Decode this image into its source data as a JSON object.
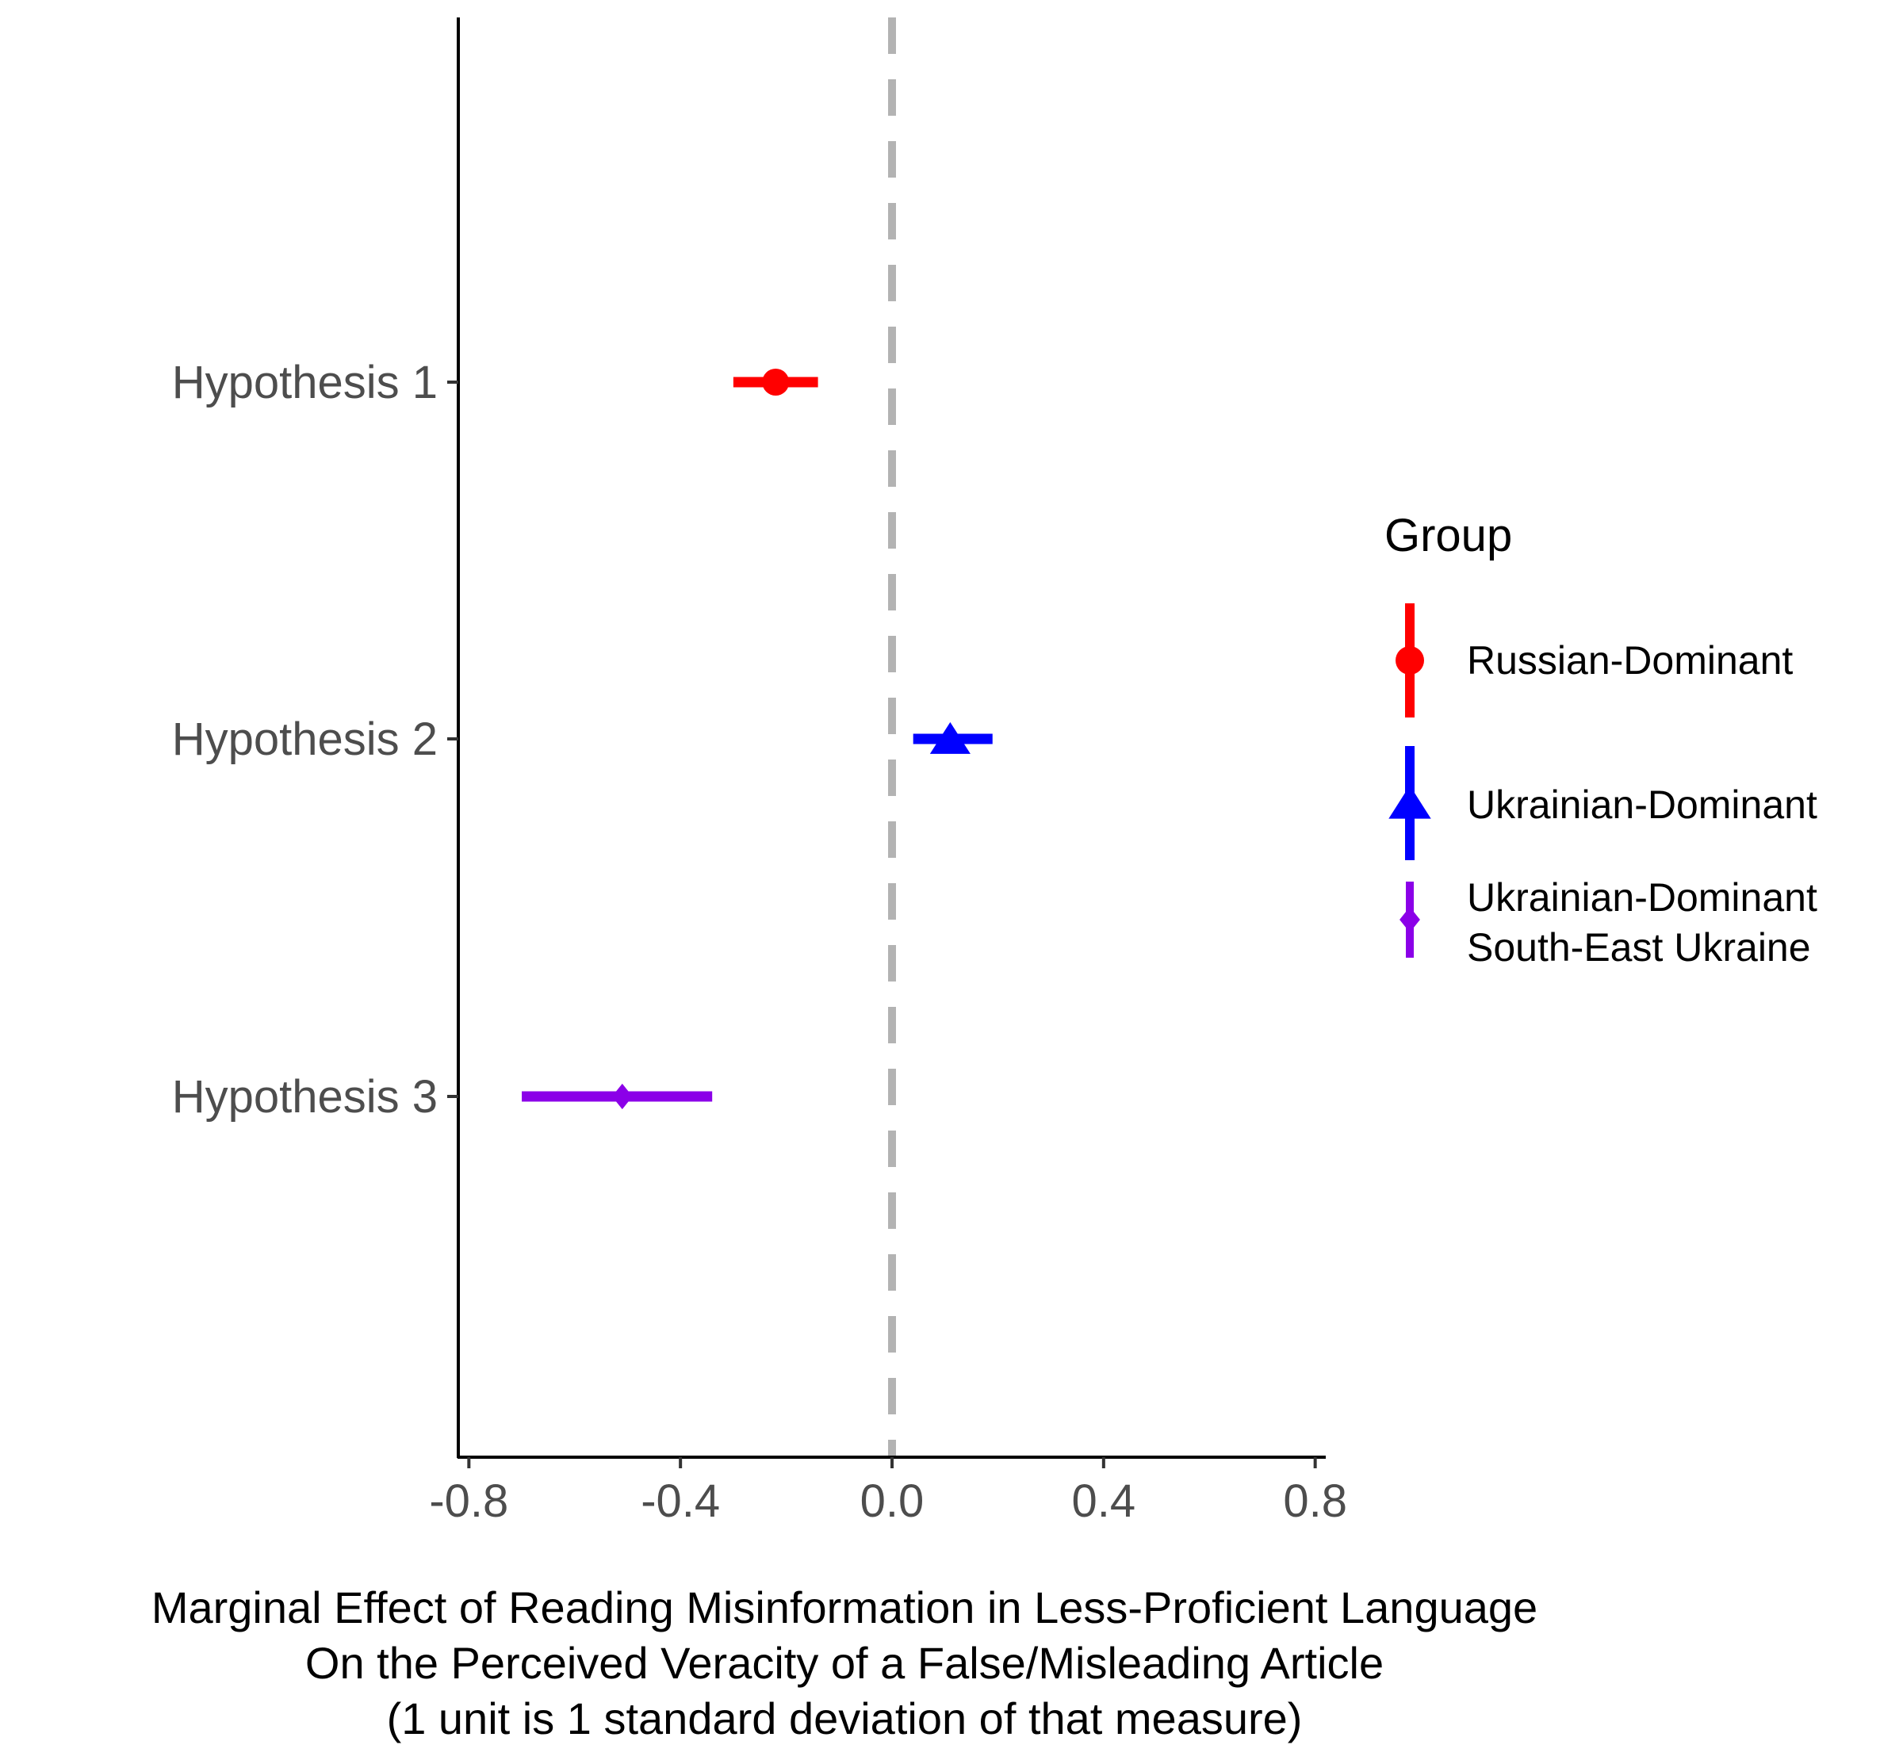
{
  "chart_data": {
    "type": "scatter",
    "subtype": "coefficient-plot-with-intervals",
    "title": "",
    "xlabel_lines": [
      "Marginal Effect of Reading Misinformation in Less-Proficient Language",
      "On the Perceived Veracity of a False/Misleading Article",
      "(1 unit is 1 standard deviation of that measure)"
    ],
    "ylabel": "",
    "xlim": [
      -0.82,
      0.82
    ],
    "x_ticks": [
      "-0.8",
      "-0.4",
      "0.0",
      "0.4",
      "0.8"
    ],
    "x_tick_values": [
      -0.8,
      -0.4,
      0.0,
      0.4,
      0.8
    ],
    "categories": [
      "Hypothesis 1",
      "Hypothesis 2",
      "Hypothesis 3"
    ],
    "reference_line": {
      "x": 0.0,
      "style": "dashed",
      "color": "#b3b3b3"
    },
    "grid": false,
    "legend": {
      "title": "Group",
      "position": "right",
      "entries": [
        {
          "label": "Russian-Dominant",
          "label_lines": [
            "Russian-Dominant"
          ],
          "color": "#ff0000",
          "shape": "circle"
        },
        {
          "label": "Ukrainian-Dominant",
          "label_lines": [
            "Ukrainian-Dominant"
          ],
          "color": "#0000ff",
          "shape": "triangle"
        },
        {
          "label": "Ukrainian-Dominant South-East Ukraine",
          "label_lines": [
            "Ukrainian-Dominant",
            "South-East Ukraine"
          ],
          "color": "#8b00e8",
          "shape": "diamond"
        }
      ]
    },
    "series": [
      {
        "name": "Russian-Dominant",
        "category": "Hypothesis 1",
        "estimate": -0.22,
        "lower": -0.3,
        "upper": -0.14,
        "color": "#ff0000",
        "shape": "circle"
      },
      {
        "name": "Ukrainian-Dominant",
        "category": "Hypothesis 2",
        "estimate": 0.11,
        "lower": 0.04,
        "upper": 0.19,
        "color": "#0000ff",
        "shape": "triangle"
      },
      {
        "name": "Ukrainian-Dominant South-East Ukraine",
        "category": "Hypothesis 3",
        "estimate": -0.51,
        "lower": -0.7,
        "upper": -0.34,
        "color": "#8b00e8",
        "shape": "diamond"
      }
    ]
  }
}
